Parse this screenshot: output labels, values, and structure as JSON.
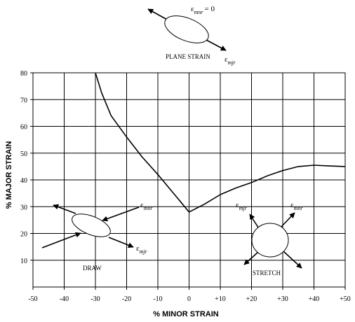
{
  "chart_data": {
    "type": "line",
    "xlabel": "% MINOR STRAIN",
    "ylabel": "% MAJOR STRAIN",
    "xlim": [
      -50,
      50
    ],
    "ylim": [
      0,
      80
    ],
    "grid": true,
    "x_ticks": [
      {
        "v": -50,
        "label": "-50"
      },
      {
        "v": -40,
        "label": "-40"
      },
      {
        "v": -30,
        "label": "-30"
      },
      {
        "v": -20,
        "label": "-20"
      },
      {
        "v": -10,
        "label": "-10"
      },
      {
        "v": 0,
        "label": "0"
      },
      {
        "v": 10,
        "label": "+10"
      },
      {
        "v": 20,
        "label": "+20"
      },
      {
        "v": 30,
        "label": "+30"
      },
      {
        "v": 40,
        "label": "+40"
      },
      {
        "v": 50,
        "label": "+50"
      }
    ],
    "y_ticks": [
      {
        "v": 10,
        "label": "10"
      },
      {
        "v": 20,
        "label": "20"
      },
      {
        "v": 30,
        "label": "30"
      },
      {
        "v": 40,
        "label": "40"
      },
      {
        "v": 50,
        "label": "50"
      },
      {
        "v": 60,
        "label": "60"
      },
      {
        "v": 70,
        "label": "70"
      },
      {
        "v": 80,
        "label": "80"
      }
    ],
    "series": [
      {
        "color": "#000000",
        "points": [
          [
            -30,
            80
          ],
          [
            -28,
            72.5
          ],
          [
            -25,
            64
          ],
          [
            -20,
            56
          ],
          [
            -15,
            48.5
          ],
          [
            -10,
            42
          ],
          [
            -5,
            35
          ],
          [
            0,
            28
          ],
          [
            5,
            31
          ],
          [
            10,
            34.5
          ],
          [
            15,
            37
          ],
          [
            20,
            39
          ],
          [
            25,
            41.5
          ],
          [
            30,
            43.5
          ],
          [
            35,
            45
          ],
          [
            40,
            45.5
          ],
          [
            45,
            45.2
          ],
          [
            50,
            45
          ]
        ]
      }
    ],
    "annotations": {
      "plane_strain": {
        "label": "PLANE STRAIN",
        "eps_top_sym": "ε",
        "eps_top_sub": "mnr",
        "eps_top_eq": "= 0",
        "eps_bottom_sym": "ε",
        "eps_bottom_sub": "mjr"
      },
      "draw": {
        "label": "DRAW",
        "eps_top_sym": "ε",
        "eps_top_sub": "mnr",
        "eps_bottom_sym": "ε",
        "eps_bottom_sub": "mjr"
      },
      "stretch": {
        "label": "STRETCH",
        "eps_left_sym": "ε",
        "eps_left_sub": "mjr",
        "eps_right_sym": "ε",
        "eps_right_sub": "mnr"
      }
    }
  }
}
